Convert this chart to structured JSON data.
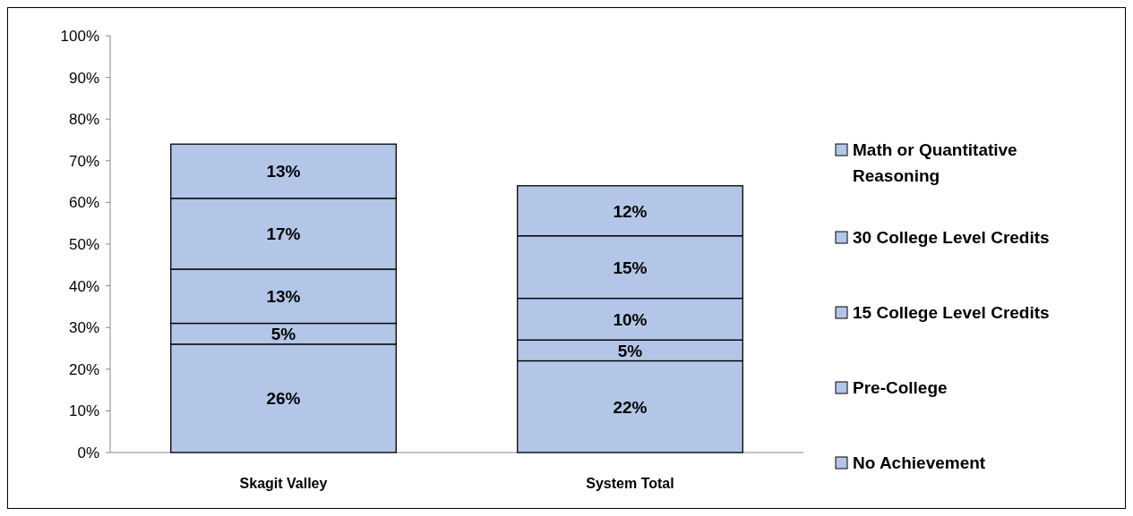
{
  "chart_data": {
    "type": "bar",
    "stacked": true,
    "categories": [
      "Skagit Valley",
      "System Total"
    ],
    "series": [
      {
        "name": "No Achievement",
        "color": "#b4c6e7",
        "values": [
          26,
          22
        ],
        "value_labels": [
          "26%",
          "22%"
        ]
      },
      {
        "name": "Pre-College",
        "color": "#b4c6e7",
        "values": [
          5,
          5
        ],
        "value_labels": [
          "5%",
          "5%"
        ]
      },
      {
        "name": "15 College Level Credits",
        "color": "#b4c6e7",
        "values": [
          13,
          10
        ],
        "value_labels": [
          "13%",
          "10%"
        ]
      },
      {
        "name": "30 College Level Credits",
        "color": "#b4c6e7",
        "values": [
          17,
          15
        ],
        "value_labels": [
          "17%",
          "15%"
        ]
      },
      {
        "name": "Math or Quantitative Reasoning",
        "color": "#b4c6e7",
        "values": [
          13,
          12
        ],
        "value_labels": [
          "13%",
          "12%"
        ]
      }
    ],
    "ylim": [
      0,
      100
    ],
    "yticks": [
      {
        "value": 0,
        "label": "0%"
      },
      {
        "value": 10,
        "label": "10%"
      },
      {
        "value": 20,
        "label": "20%"
      },
      {
        "value": 30,
        "label": "30%"
      },
      {
        "value": 40,
        "label": "40%"
      },
      {
        "value": 50,
        "label": "50%"
      },
      {
        "value": 60,
        "label": "60%"
      },
      {
        "value": 70,
        "label": "70%"
      },
      {
        "value": 80,
        "label": "80%"
      },
      {
        "value": 90,
        "label": "90%"
      },
      {
        "value": 100,
        "label": "100%"
      }
    ],
    "grid": false,
    "legend": "right"
  }
}
